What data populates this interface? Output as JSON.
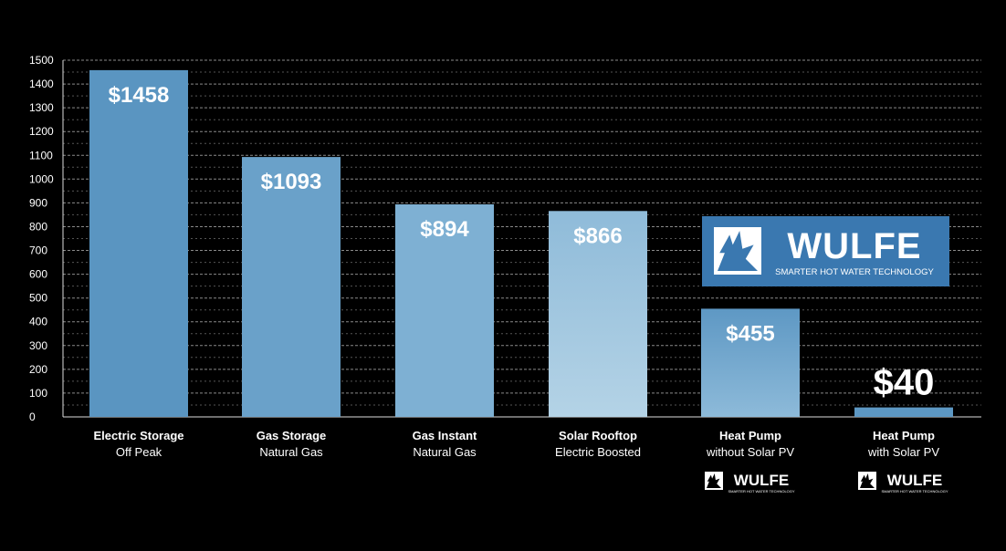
{
  "chart_data": {
    "type": "bar",
    "title": "",
    "xlabel": "",
    "ylabel": "",
    "ylim": [
      0,
      1500
    ],
    "yticks": [
      0,
      100,
      200,
      300,
      400,
      500,
      600,
      700,
      800,
      900,
      1000,
      1100,
      1200,
      1300,
      1400,
      1500
    ],
    "grid": true,
    "categories": [
      {
        "line1": "Electric Storage",
        "line2": "Off Peak"
      },
      {
        "line1": "Gas Storage",
        "line2": "Natural Gas"
      },
      {
        "line1": "Gas Instant",
        "line2": "Natural Gas"
      },
      {
        "line1": "Solar Rooftop",
        "line2": "Electric Boosted"
      },
      {
        "line1": "Heat Pump",
        "line2": "without Solar PV"
      },
      {
        "line1": "Heat Pump",
        "line2": "with Solar PV"
      }
    ],
    "values": [
      1458,
      1093,
      894,
      866,
      455,
      40
    ],
    "value_labels": [
      "$1458",
      "$1093",
      "$894",
      "$866",
      "$455",
      "$40"
    ],
    "colors": [
      "#5a95c1",
      "#6aa1c9",
      "#7eb0d3",
      "#a7cbe2",
      "#6a9fc6",
      "#5d98c4"
    ]
  },
  "logo": {
    "name": "WULFE",
    "tagline": "SMARTER HOT WATER TECHNOLOGY",
    "box_color": "#3a78b0",
    "small_logos_under": [
      4,
      5
    ]
  }
}
